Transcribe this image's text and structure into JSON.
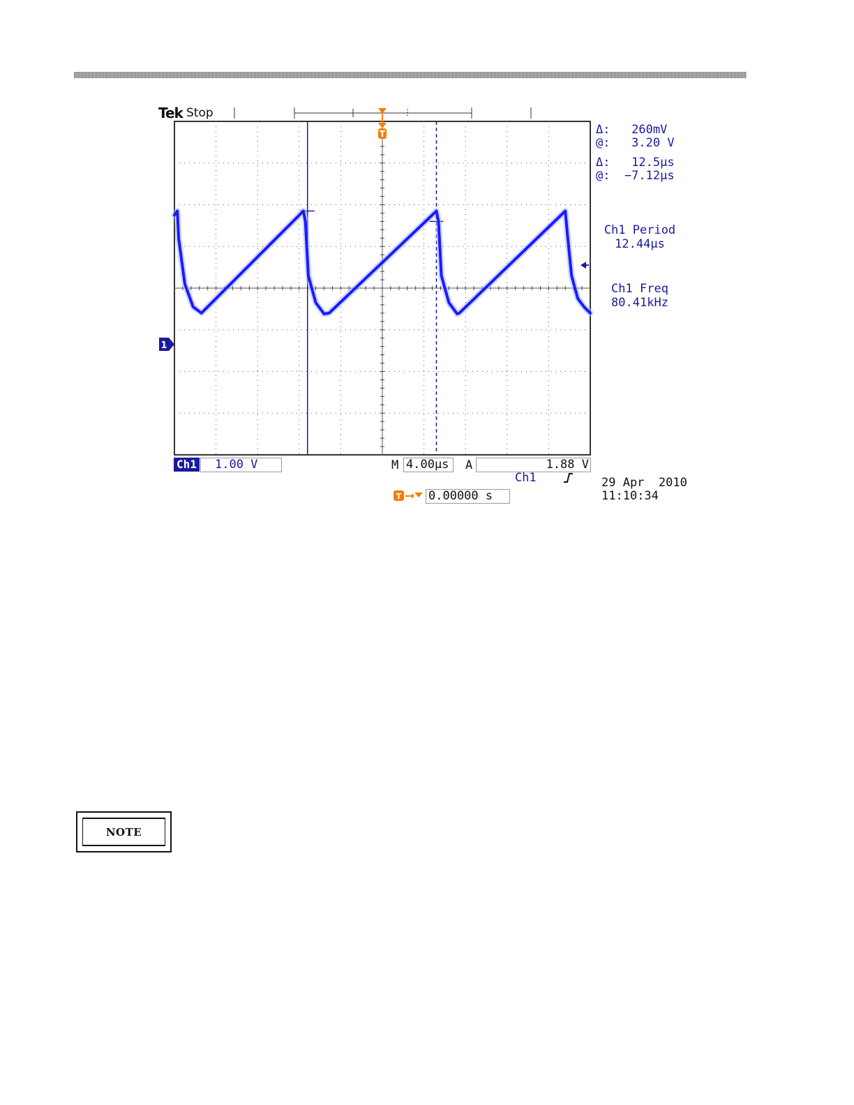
{
  "scope": {
    "brand": "Tek",
    "status": "Stop",
    "cursor_readout": {
      "voltage_delta": "Δ:   260mV",
      "voltage_at": "@:   3.20 V",
      "time_delta": "Δ:   12.5μs",
      "time_at": "@:  −7.12μs"
    },
    "measurements": [
      {
        "label": "Ch1 Period",
        "value": "12.44μs"
      },
      {
        "label": "Ch1 Freq",
        "value": "80.41kHz"
      }
    ],
    "channel_marker": "1",
    "trigger_marker": "T",
    "bottom_bar": {
      "channel": "Ch1",
      "volts_per_div": "1.00 V",
      "timebase_prefix": "M",
      "timebase": "4.00μs",
      "trigger_mode": "A",
      "trigger_source": "Ch1",
      "trigger_slope": "rising-edge-icon",
      "trigger_level": "1.88 V",
      "trigger_offset": "0.00000 s"
    },
    "timestamp": {
      "date": "29 Apr  2010",
      "time": "11:10:34"
    },
    "colors": {
      "trace": "#1a1aff",
      "readout": "#1a1a9c",
      "trigger": "#f08000",
      "grid": "#333333"
    }
  },
  "chart_data": {
    "type": "line",
    "x_units": "div",
    "y_units": "div",
    "xlim": [
      -5,
      5
    ],
    "ylim": [
      -4,
      4
    ],
    "grid": true,
    "series": [
      {
        "x": [
          -5.0,
          -4.93,
          -4.9,
          -4.75,
          -4.55,
          -4.35,
          -1.9,
          -1.85,
          -1.78,
          -1.6,
          -1.4,
          -1.28,
          1.3,
          1.35,
          1.42,
          1.6,
          1.8,
          1.85,
          4.4,
          4.45,
          4.55,
          4.7,
          4.85,
          5.0
        ],
        "y": [
          1.75,
          1.85,
          1.2,
          0.1,
          -0.45,
          -0.6,
          1.85,
          1.6,
          0.3,
          -0.35,
          -0.62,
          -0.6,
          1.85,
          1.6,
          0.3,
          -0.35,
          -0.62,
          -0.6,
          1.85,
          1.3,
          0.3,
          -0.25,
          -0.45,
          -0.6
        ]
      }
    ],
    "cursors": {
      "vertical": [
        -1.8,
        1.3
      ],
      "horizontal_ticks": [
        1.85,
        1.6
      ]
    },
    "trigger_level_div": 0.55,
    "ground_level_div": -1.4
  }
}
